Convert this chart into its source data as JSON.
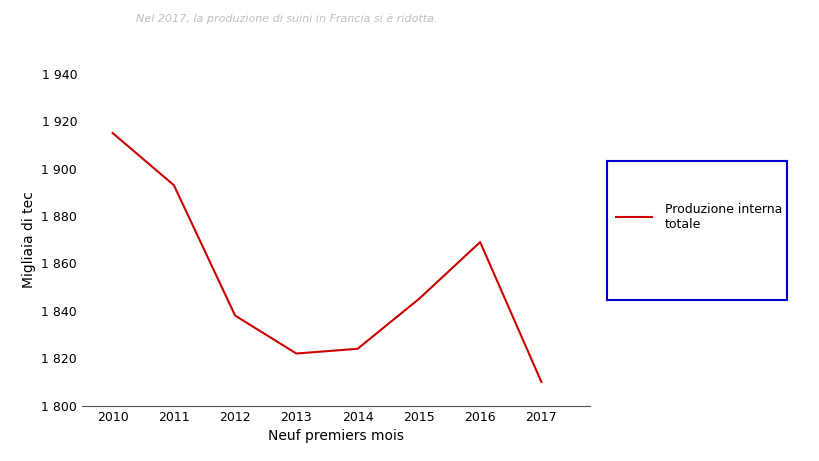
{
  "years": [
    2010,
    2011,
    2012,
    2013,
    2014,
    2015,
    2016,
    2017
  ],
  "values": [
    1915,
    1893,
    1838,
    1822,
    1824,
    1845,
    1869,
    1810
  ],
  "line_color": "#cc0000",
  "xlabel": "Neuf premiers mois",
  "ylabel": "Migliaia di tec",
  "ylim": [
    1800,
    1940
  ],
  "yticks": [
    1800,
    1820,
    1840,
    1860,
    1880,
    1900,
    1920,
    1940
  ],
  "ytick_labels": [
    "1 800",
    "1 820",
    "1 840",
    "1 860",
    "1 880",
    "1 900",
    "1 920",
    "1 940"
  ],
  "legend_label": "Produzione interna\ntotale",
  "legend_box_color": "#0000cc",
  "background_color": "#ffffff",
  "title_faded": "Nel 2017, la produzione di suini in Francia si è ridotta.",
  "line_width": 1.5,
  "xlabel_fontsize": 10,
  "ylabel_fontsize": 10,
  "tick_fontsize": 9,
  "title_fontsize": 8,
  "title_color": "#c0c0c0",
  "xlim_left": 2009.5,
  "xlim_right": 2017.8
}
